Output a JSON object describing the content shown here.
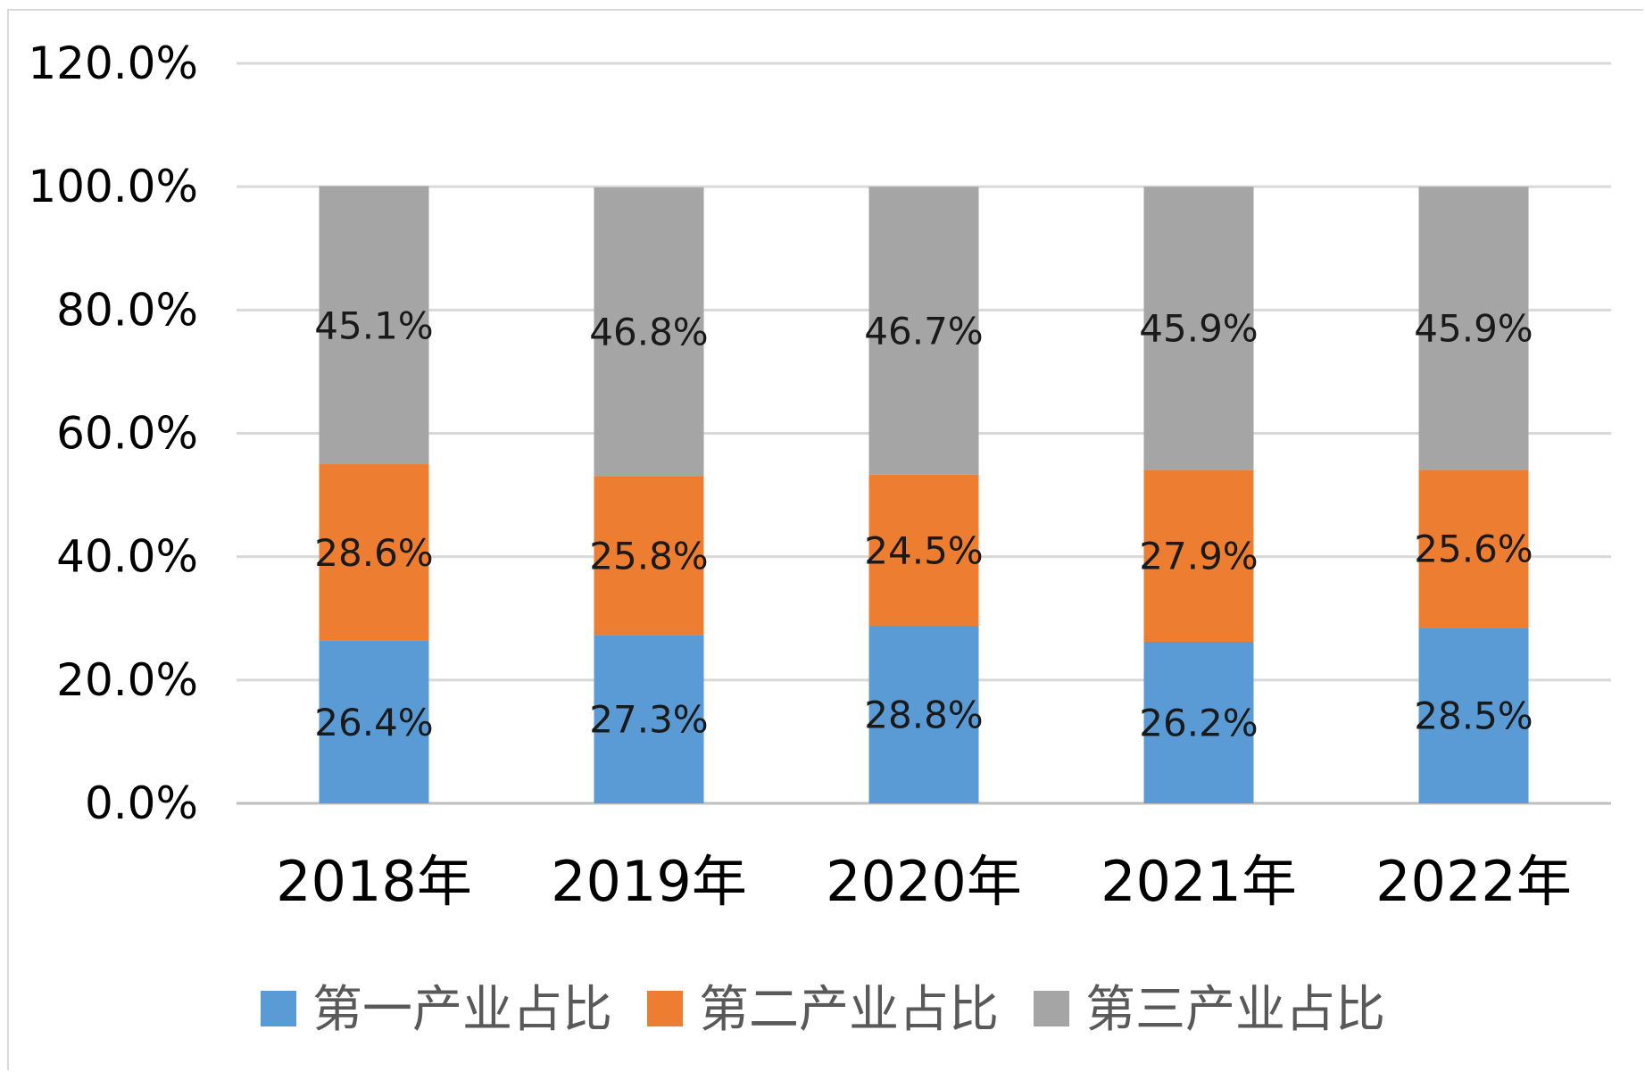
{
  "chart_data": {
    "type": "bar",
    "stacked": true,
    "categories": [
      "2018年",
      "2019年",
      "2020年",
      "2021年",
      "2022年"
    ],
    "series": [
      {
        "name": "第一产业占比",
        "color": "#5b9bd5",
        "values": [
          26.4,
          27.3,
          28.8,
          26.2,
          28.5
        ],
        "labels": [
          "26.4%",
          "27.3%",
          "28.8%",
          "26.2%",
          "28.5%"
        ]
      },
      {
        "name": "第二产业占比",
        "color": "#ed7d31",
        "values": [
          28.6,
          25.8,
          24.5,
          27.9,
          25.6
        ],
        "labels": [
          "28.6%",
          "25.8%",
          "24.5%",
          "27.9%",
          "25.6%"
        ]
      },
      {
        "name": "第三产业占比",
        "color": "#a5a5a5",
        "values": [
          45.1,
          46.8,
          46.7,
          45.9,
          45.9
        ],
        "labels": [
          "45.1%",
          "46.8%",
          "46.7%",
          "45.9%",
          "45.9%"
        ]
      }
    ],
    "ylim": [
      0,
      120
    ],
    "yticks": [
      "0.0%",
      "20.0%",
      "40.0%",
      "60.0%",
      "80.0%",
      "100.0%",
      "120.0%"
    ],
    "grid": true,
    "legend_position": "bottom",
    "title": "",
    "xlabel": "",
    "ylabel": ""
  }
}
